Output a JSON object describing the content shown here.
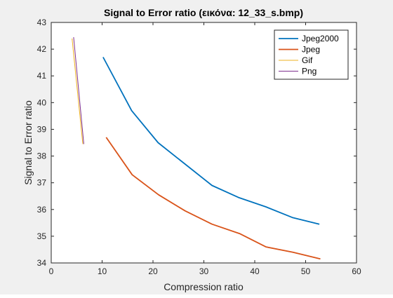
{
  "chart_data": {
    "type": "line",
    "title": "Signal to Error ratio (εικόνα: 12_33_s.bmp)",
    "xlabel": "Compression ratio",
    "ylabel": "Signal to Error ratio",
    "xlim": [
      0,
      60
    ],
    "ylim": [
      34,
      43
    ],
    "xticks": [
      0,
      10,
      20,
      30,
      40,
      50,
      60
    ],
    "yticks": [
      34,
      35,
      36,
      37,
      38,
      39,
      40,
      41,
      42,
      43
    ],
    "grid": false,
    "legend_position": "top-right",
    "series": [
      {
        "name": "Jpeg2000",
        "color": "#0072bd",
        "x": [
          10.2,
          15.8,
          21.0,
          26.3,
          31.6,
          36.8,
          42.2,
          47.4,
          52.7
        ],
        "y": [
          41.7,
          39.7,
          38.5,
          37.7,
          36.9,
          36.45,
          36.1,
          35.7,
          35.45
        ]
      },
      {
        "name": "Jpeg",
        "color": "#d95319",
        "x": [
          10.8,
          15.9,
          21.1,
          26.3,
          31.6,
          37.0,
          42.2,
          47.5,
          52.9
        ],
        "y": [
          38.7,
          37.3,
          36.55,
          35.95,
          35.45,
          35.1,
          34.6,
          34.4,
          34.15
        ]
      },
      {
        "name": "Gif",
        "color": "#edb120",
        "x": [
          4.1,
          6.2
        ],
        "y": [
          42.4,
          38.45
        ]
      },
      {
        "name": "Png",
        "color": "#7e2f8e",
        "x": [
          4.4,
          6.4
        ],
        "y": [
          42.45,
          38.45
        ]
      }
    ]
  }
}
